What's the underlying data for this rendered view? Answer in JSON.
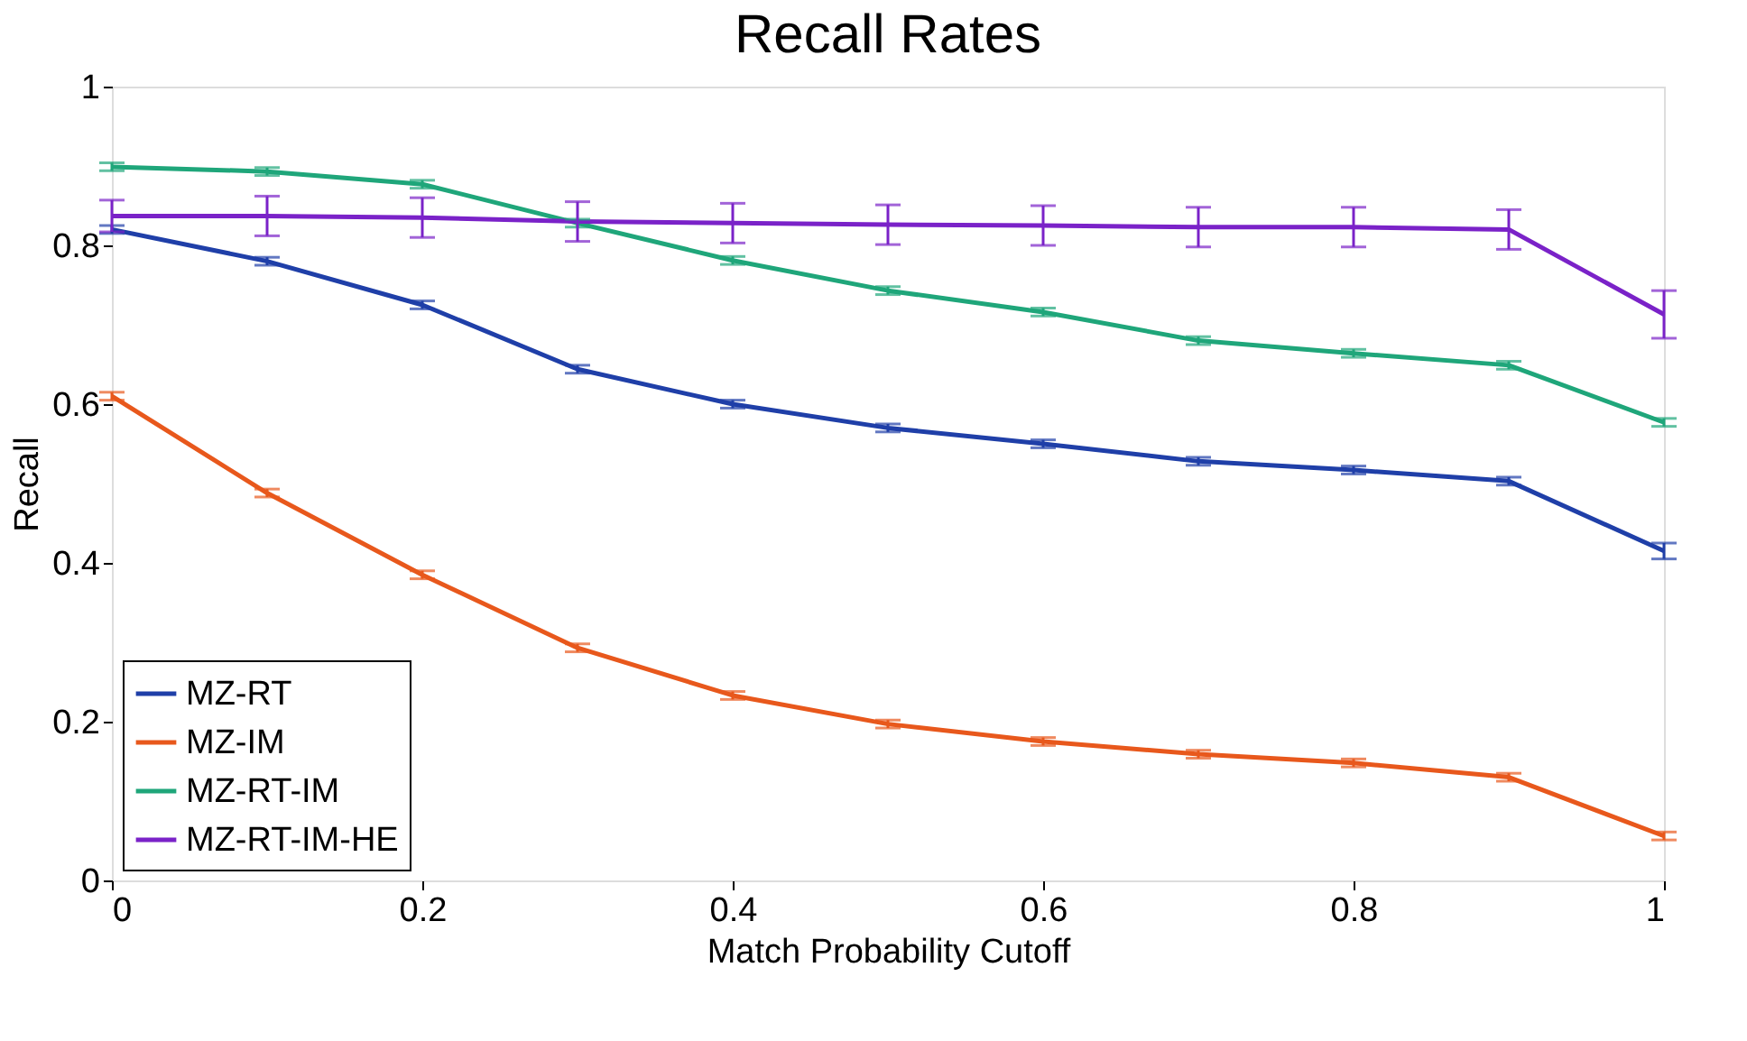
{
  "chart_data": {
    "type": "line",
    "title": "Recall Rates",
    "xlabel": "Match Probability Cutoff",
    "ylabel": "Recall",
    "x": [
      0,
      0.1,
      0.2,
      0.3,
      0.4,
      0.5,
      0.6,
      0.7,
      0.8,
      0.9,
      1.0
    ],
    "xlim": [
      0,
      1
    ],
    "xticks": [
      0,
      0.2,
      0.4,
      0.6,
      0.8,
      1
    ],
    "ylim": [
      0,
      1
    ],
    "yticks": [
      0,
      0.2,
      0.4,
      0.6,
      0.8,
      1
    ],
    "grid": false,
    "legend": "bottom left",
    "marker": "none",
    "line_style": "solid",
    "series": [
      {
        "name": "MZ-RT",
        "color": "#1f3fa8",
        "values": [
          0.82,
          0.78,
          0.725,
          0.644,
          0.6,
          0.57,
          0.55,
          0.528,
          0.517,
          0.503,
          0.415
        ],
        "errors": [
          0.005,
          0.005,
          0.005,
          0.005,
          0.005,
          0.005,
          0.005,
          0.005,
          0.005,
          0.005,
          0.01
        ]
      },
      {
        "name": "MZ-IM",
        "color": "#e8581c",
        "values": [
          0.61,
          0.488,
          0.385,
          0.293,
          0.233,
          0.197,
          0.175,
          0.159,
          0.148,
          0.13,
          0.056
        ],
        "errors": [
          0.005,
          0.005,
          0.005,
          0.005,
          0.005,
          0.005,
          0.005,
          0.005,
          0.005,
          0.005,
          0.005
        ]
      },
      {
        "name": "MZ-RT-IM",
        "color": "#1fa67a",
        "values": [
          0.899,
          0.893,
          0.877,
          0.828,
          0.781,
          0.743,
          0.716,
          0.68,
          0.664,
          0.649,
          0.577
        ],
        "errors": [
          0.005,
          0.005,
          0.005,
          0.005,
          0.005,
          0.005,
          0.005,
          0.005,
          0.005,
          0.005,
          0.005
        ]
      },
      {
        "name": "MZ-RT-IM-HE",
        "color": "#7a22c8",
        "values": [
          0.837,
          0.837,
          0.835,
          0.83,
          0.828,
          0.826,
          0.825,
          0.823,
          0.823,
          0.82,
          0.713
        ],
        "errors": [
          0.02,
          0.025,
          0.025,
          0.025,
          0.025,
          0.025,
          0.025,
          0.025,
          0.025,
          0.025,
          0.03
        ]
      }
    ]
  }
}
